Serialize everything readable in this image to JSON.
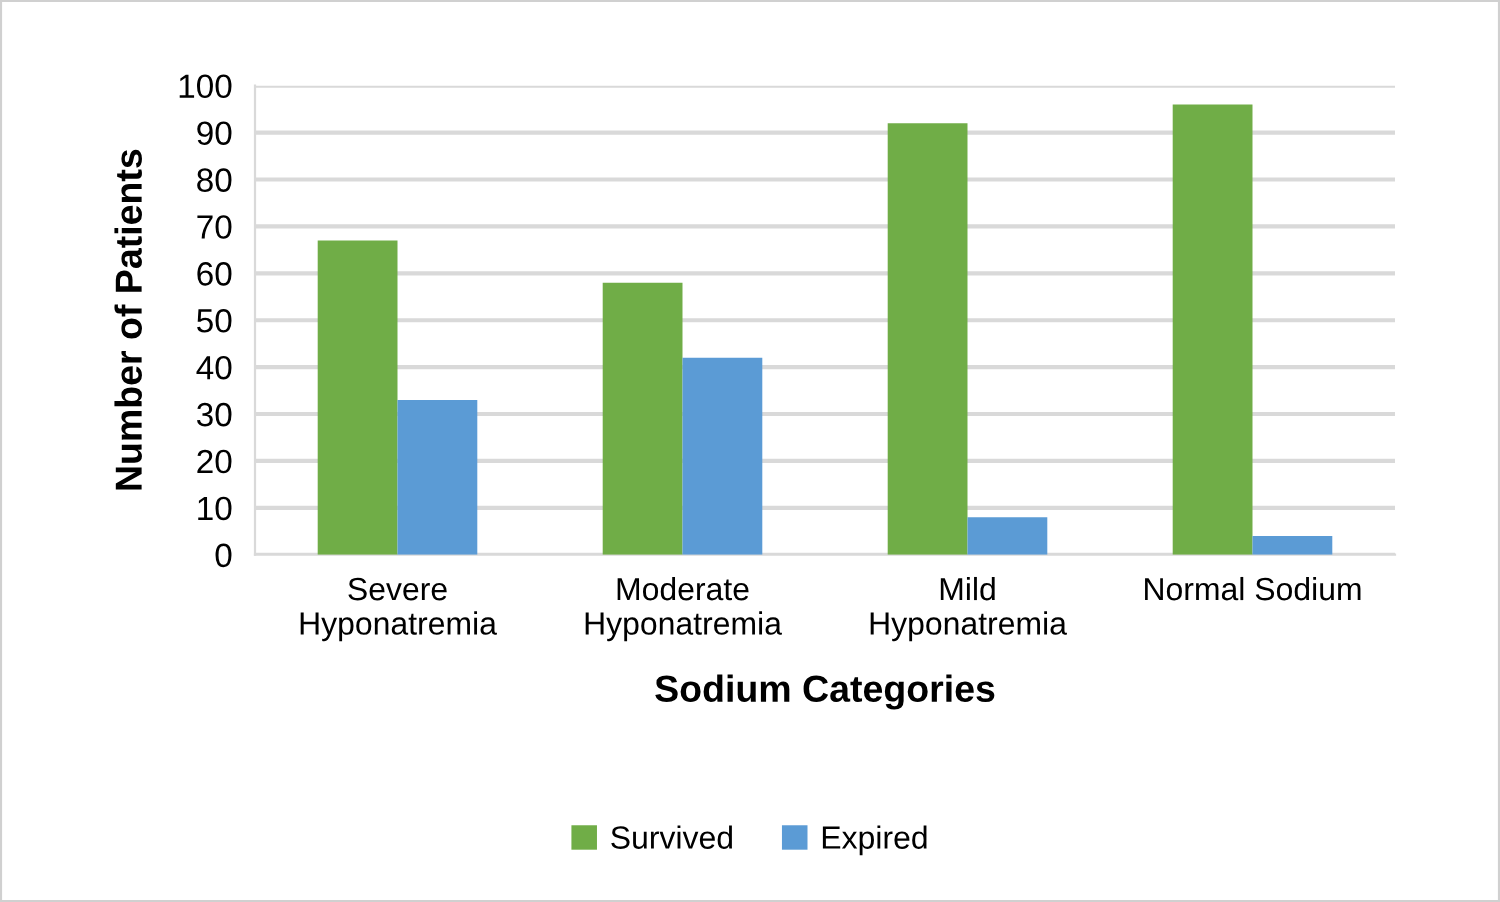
{
  "chart_data": {
    "type": "bar",
    "xlabel": "Sodium Categories",
    "ylabel": "Number of Patients",
    "categories": [
      "Severe\nHyponatremia",
      "Moderate\nHyponatremia",
      "Mild\nHyponatremia",
      "Normal Sodium"
    ],
    "series": [
      {
        "name": "Survived",
        "color": "#70ad47",
        "values": [
          67,
          58,
          92,
          96
        ]
      },
      {
        "name": "Expired",
        "color": "#5b9bd5",
        "values": [
          33,
          42,
          8,
          4
        ]
      }
    ],
    "ylim": [
      0,
      100
    ],
    "yticks": [
      0,
      10,
      20,
      30,
      40,
      50,
      60,
      70,
      80,
      90,
      100
    ],
    "grid": "y",
    "legend": "bottom"
  }
}
